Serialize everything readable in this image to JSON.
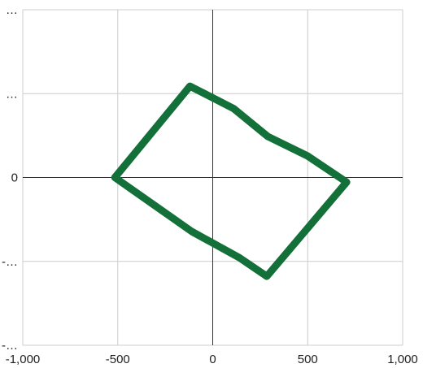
{
  "chart_data": {
    "type": "line",
    "title": "",
    "xlabel": "",
    "ylabel": "",
    "xlim": [
      -1000,
      1000
    ],
    "ylim": [
      -900,
      900
    ],
    "grid": true,
    "x_ticks": [
      {
        "value": -1000,
        "label": "-1,000"
      },
      {
        "value": -500,
        "label": "-500"
      },
      {
        "value": 0,
        "label": "0"
      },
      {
        "value": 500,
        "label": "500"
      },
      {
        "value": 1000,
        "label": "1,000"
      }
    ],
    "y_ticks": [
      {
        "value": 900,
        "label": "…"
      },
      {
        "value": 450,
        "label": "…"
      },
      {
        "value": 0,
        "label": "0"
      },
      {
        "value": -450,
        "label": "-…"
      },
      {
        "value": -900,
        "label": "-…"
      }
    ],
    "series": [
      {
        "color": "#137039",
        "points": [
          {
            "x": -120,
            "y": 490
          },
          {
            "x": 110,
            "y": 370
          },
          {
            "x": 290,
            "y": 220
          },
          {
            "x": 500,
            "y": 115
          },
          {
            "x": 705,
            "y": -25
          },
          {
            "x": 285,
            "y": -530
          },
          {
            "x": 140,
            "y": -430
          },
          {
            "x": -110,
            "y": -290
          },
          {
            "x": -515,
            "y": 0
          },
          {
            "x": -120,
            "y": 490
          }
        ]
      }
    ]
  }
}
